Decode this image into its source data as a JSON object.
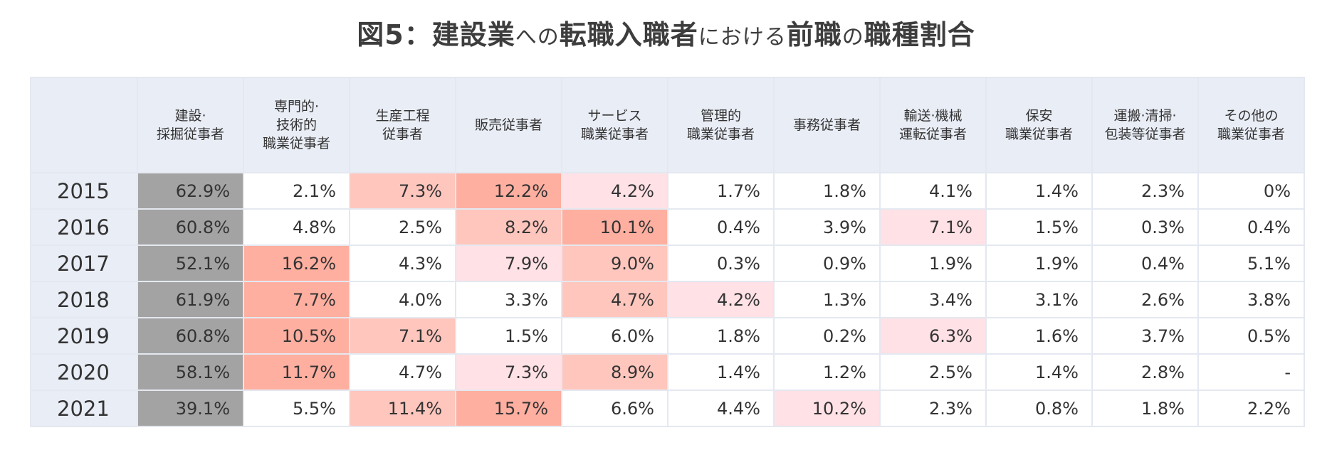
{
  "title_main_1": "図5：建設業",
  "title_small_1": "への",
  "title_main_2": "転職入職者",
  "title_small_2": "における",
  "title_main_3": "前職",
  "title_small_3": "の",
  "title_main_4": "職種割合",
  "chart_data": {
    "type": "table",
    "columns": [
      [
        "建設·",
        "採掘従事者"
      ],
      [
        "専門的·",
        "技術的",
        "職業従事者"
      ],
      [
        "生産工程",
        "従事者"
      ],
      [
        "販売従事者"
      ],
      [
        "サービス",
        "職業従事者"
      ],
      [
        "管理的",
        "職業従事者"
      ],
      [
        "事務従事者"
      ],
      [
        "輸送·機械",
        "運転従事者"
      ],
      [
        "保安",
        "職業従事者"
      ],
      [
        "運搬·清掃·",
        "包装等従事者"
      ],
      [
        "その他の",
        "職業従事者"
      ]
    ],
    "rows": [
      {
        "year": "2015",
        "values": [
          "62.9%",
          "2.1%",
          "7.3%",
          "12.2%",
          "4.2%",
          "1.7%",
          "1.8%",
          "4.1%",
          "1.4%",
          "2.3%",
          "0%"
        ],
        "highlight": [
          0,
          null,
          2,
          1,
          3,
          null,
          null,
          null,
          null,
          null,
          null
        ]
      },
      {
        "year": "2016",
        "values": [
          "60.8%",
          "4.8%",
          "2.5%",
          "8.2%",
          "10.1%",
          "0.4%",
          "3.9%",
          "7.1%",
          "1.5%",
          "0.3%",
          "0.4%"
        ],
        "highlight": [
          0,
          null,
          null,
          2,
          1,
          null,
          null,
          3,
          null,
          null,
          null
        ]
      },
      {
        "year": "2017",
        "values": [
          "52.1%",
          "16.2%",
          "4.3%",
          "7.9%",
          "9.0%",
          "0.3%",
          "0.9%",
          "1.9%",
          "1.9%",
          "0.4%",
          "5.1%"
        ],
        "highlight": [
          0,
          1,
          null,
          3,
          2,
          null,
          null,
          null,
          null,
          null,
          null
        ]
      },
      {
        "year": "2018",
        "values": [
          "61.9%",
          "7.7%",
          "4.0%",
          "3.3%",
          "4.7%",
          "4.2%",
          "1.3%",
          "3.4%",
          "3.1%",
          "2.6%",
          "3.8%"
        ],
        "highlight": [
          0,
          1,
          null,
          null,
          2,
          3,
          null,
          null,
          null,
          null,
          null
        ]
      },
      {
        "year": "2019",
        "values": [
          "60.8%",
          "10.5%",
          "7.1%",
          "1.5%",
          "6.0%",
          "1.8%",
          "0.2%",
          "6.3%",
          "1.6%",
          "3.7%",
          "0.5%"
        ],
        "highlight": [
          0,
          1,
          2,
          null,
          null,
          null,
          null,
          3,
          null,
          null,
          null
        ]
      },
      {
        "year": "2020",
        "values": [
          "58.1%",
          "11.7%",
          "4.7%",
          "7.3%",
          "8.9%",
          "1.4%",
          "1.2%",
          "2.5%",
          "1.4%",
          "2.8%",
          "-"
        ],
        "highlight": [
          0,
          1,
          null,
          3,
          2,
          null,
          null,
          null,
          null,
          null,
          null
        ]
      },
      {
        "year": "2021",
        "values": [
          "39.1%",
          "5.5%",
          "11.4%",
          "15.7%",
          "6.6%",
          "4.4%",
          "10.2%",
          "2.3%",
          "0.8%",
          "1.8%",
          "2.2%"
        ],
        "highlight": [
          0,
          null,
          2,
          1,
          null,
          null,
          3,
          null,
          null,
          null,
          null
        ]
      }
    ],
    "highlight_colors": [
      "#a3a3a3",
      "#ffafa0",
      "#ffc6bd",
      "#ffe1e6"
    ],
    "header_bg": "#e9edf6"
  }
}
